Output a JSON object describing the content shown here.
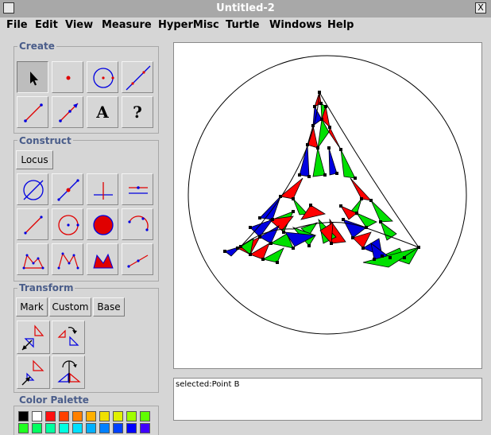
{
  "window": {
    "title": "Untitled-2",
    "close_label": "X"
  },
  "menu": [
    "File",
    "Edit",
    "View",
    "Measure",
    "HyperMisc",
    "Turtle",
    "Windows",
    "Help"
  ],
  "panels": {
    "create": {
      "title": "Create",
      "tools": [
        "select-arrow",
        "point",
        "circle",
        "line",
        "segment",
        "ray",
        "text",
        "help"
      ],
      "text_tool_label": "A",
      "help_tool_label": "?"
    },
    "construct": {
      "title": "Construct",
      "locus_label": "Locus",
      "tools": [
        "circle-through",
        "midpoint",
        "perpendicular",
        "parallel",
        "segment-between",
        "circle-center",
        "filled-circle",
        "arc",
        "polygon",
        "polygon-open",
        "filled-polygon",
        "ray-measure"
      ]
    },
    "transform": {
      "title": "Transform",
      "buttons": [
        "Mark",
        "Custom",
        "Base"
      ],
      "tools": [
        "reflect",
        "rotate",
        "dilate",
        "rotate-about-point"
      ]
    },
    "palette": {
      "title": "Color Palette",
      "colors": [
        "#000000",
        "#ffffff",
        "#ff1010",
        "#ff4000",
        "#ff8000",
        "#ffb000",
        "#f0e000",
        "#e0f000",
        "#a0ff00",
        "#60ff00",
        "#20ff20",
        "#00ff60",
        "#00ffa0",
        "#00ffe0",
        "#00e0ff",
        "#00b0ff",
        "#0080ff",
        "#0040ff",
        "#0000ff",
        "#4000ff",
        "#8000ff"
      ]
    }
  },
  "status": {
    "text": "selected:Point B"
  },
  "colors": {
    "red": "#ff0000",
    "green": "#00e000",
    "blue": "#0000e0",
    "title_text": "#4a5d8a"
  }
}
